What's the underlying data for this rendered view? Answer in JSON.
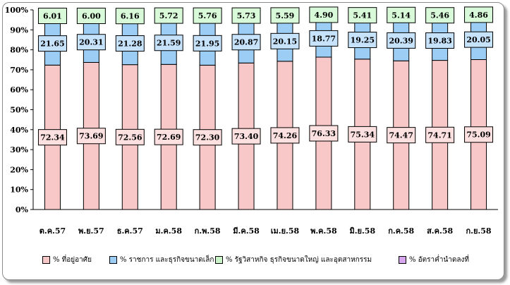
{
  "chart_data": {
    "type": "bar",
    "stacked": true,
    "categories": [
      "ต.ค.57",
      "พ.ย.57",
      "ธ.ค.57",
      "ม.ค.58",
      "ก.พ.58",
      "มี.ค.58",
      "เม.ย.58",
      "พ.ค.58",
      "มิ.ย.58",
      "ก.ค.58",
      "ส.ค.58",
      "ก.ย.58"
    ],
    "series": [
      {
        "name": "% ที่อยู่อาศัย",
        "color": "#f8c8c8",
        "values": [
          72.34,
          73.69,
          72.56,
          72.69,
          72.3,
          73.4,
          74.26,
          76.33,
          75.34,
          74.47,
          74.71,
          75.09
        ]
      },
      {
        "name": "% ราชการ และธุรกิจขนาดเล็ก",
        "color": "#9ccdf4",
        "values": [
          21.65,
          20.31,
          21.28,
          21.59,
          21.95,
          20.87,
          20.15,
          18.77,
          19.25,
          20.39,
          19.83,
          20.05
        ]
      },
      {
        "name": "% รัฐวิสาหกิจ ธุรกิจขนาดใหญ่ และอุตสาหกรรม",
        "color": "#c9f5c9",
        "values": [
          6.01,
          6.0,
          6.16,
          5.72,
          5.76,
          5.73,
          5.59,
          4.9,
          5.41,
          5.14,
          5.46,
          4.86
        ]
      },
      {
        "name": "% อัตราค่ำนำดลงที่",
        "color": "#d7a6ee",
        "values": [
          0,
          0,
          0,
          0,
          0,
          0,
          0,
          0,
          0,
          0,
          0,
          0
        ]
      }
    ],
    "yticks": [
      "0%",
      "10%",
      "20%",
      "30%",
      "40%",
      "50%",
      "60%",
      "70%",
      "80%",
      "90%",
      "100%"
    ],
    "ylim": [
      0,
      100
    ],
    "grid": false,
    "legend_position": "bottom"
  }
}
